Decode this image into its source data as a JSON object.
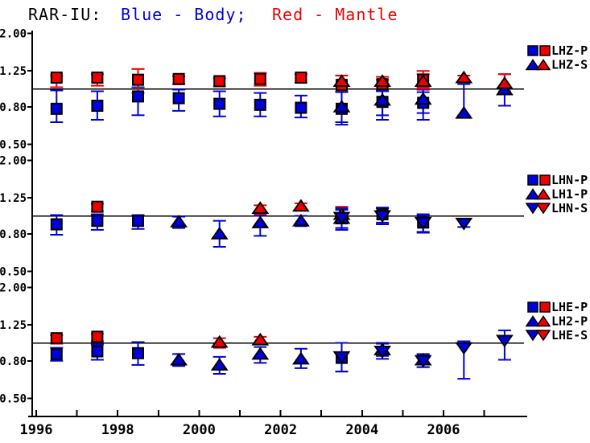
{
  "title": {
    "app": "RAR-IU:",
    "body_label": "Blue - Body;",
    "mantle_label": "Red - Mantle"
  },
  "colors": {
    "body": "#0000dd",
    "mantle": "#ee0000",
    "axis": "#000000",
    "background": "#ffffff"
  },
  "x_axis": {
    "tick_years": [
      1996,
      1997,
      1998,
      1999,
      2000,
      2001,
      2002,
      2003,
      2004,
      2005,
      2006,
      2007
    ],
    "labeled_years": [
      1996,
      1998,
      2000,
      2002,
      2004,
      2006
    ]
  },
  "chart_data": [
    {
      "type": "scatter",
      "channel": "LHZ",
      "yscale": "log",
      "ytick_labels": [
        "2.00",
        "1.25",
        "0.80",
        "0.50"
      ],
      "ytick_values": [
        2.0,
        1.25,
        0.8,
        0.5
      ],
      "ref_line": 1.0,
      "ylim": [
        0.45,
        2.1
      ],
      "legend": [
        {
          "label": "LHZ-P",
          "marker": "square"
        },
        {
          "label": "LHZ-S",
          "marker": "triangle-up"
        }
      ],
      "series": [
        {
          "name": "LHZ-P Body",
          "legend": "LHZ-P",
          "group": "body",
          "marker": "square",
          "points": [
            [
              1996.5,
              0.78,
              0.66,
              0.98
            ],
            [
              1997.5,
              0.81,
              0.68,
              0.97
            ],
            [
              1998.5,
              0.91,
              0.72,
              1.02
            ],
            [
              1999.5,
              0.89,
              0.76,
              0.99
            ],
            [
              2000.5,
              0.83,
              0.71,
              0.97
            ],
            [
              2001.5,
              0.82,
              0.71,
              0.95
            ],
            [
              2002.5,
              0.79,
              0.7,
              0.92
            ],
            [
              2003.5,
              0.78,
              0.64,
              0.97
            ],
            [
              2004.5,
              0.85,
              0.68,
              0.97
            ],
            [
              2005.5,
              0.84,
              0.68,
              0.96
            ]
          ]
        },
        {
          "name": "LHZ-P Mantle",
          "legend": "LHZ-P",
          "group": "mantle",
          "marker": "square",
          "points": [
            [
              1996.5,
              1.15,
              1.02,
              1.18
            ],
            [
              1997.5,
              1.15,
              1.04,
              1.2
            ],
            [
              1998.5,
              1.12,
              0.95,
              1.28
            ],
            [
              1999.5,
              1.13,
              1.06,
              1.17
            ],
            [
              2000.5,
              1.1,
              1.03,
              1.14
            ],
            [
              2001.5,
              1.13,
              1.04,
              1.22
            ],
            [
              2002.5,
              1.15,
              1.08,
              1.2
            ],
            [
              2003.5,
              1.05,
              0.97,
              1.18
            ],
            [
              2004.5,
              1.06,
              1.0,
              1.12
            ],
            [
              2005.5,
              1.12,
              1.02,
              1.25
            ]
          ]
        },
        {
          "name": "LHZ-S Body",
          "legend": "LHZ-S",
          "group": "body",
          "marker": "triangle-up",
          "points": [
            [
              2003.5,
              0.8,
              0.66,
              0.96
            ],
            [
              2004.5,
              0.87,
              0.72,
              0.98
            ],
            [
              2005.5,
              0.88,
              0.74,
              0.99
            ],
            [
              2006.5,
              0.74,
              0.72,
              1.06
            ],
            [
              2007.5,
              0.99,
              0.81,
              1.2
            ]
          ]
        },
        {
          "name": "LHZ-S Mantle",
          "legend": "LHZ-S",
          "group": "mantle",
          "marker": "triangle-up",
          "points": [
            [
              2003.5,
              1.1,
              1.0,
              1.18
            ],
            [
              2004.5,
              1.1,
              1.03,
              1.16
            ],
            [
              2005.5,
              1.1,
              1.0,
              1.2
            ],
            [
              2006.5,
              1.15,
              1.1,
              1.18
            ],
            [
              2007.5,
              1.07,
              0.97,
              1.2
            ]
          ]
        }
      ]
    },
    {
      "type": "scatter",
      "channel": "LHN",
      "yscale": "log",
      "ytick_labels": [
        "2.00",
        "1.25",
        "0.80",
        "0.50"
      ],
      "ytick_values": [
        2.0,
        1.25,
        0.8,
        0.5
      ],
      "ref_line": 1.0,
      "ylim": [
        0.45,
        2.1
      ],
      "legend": [
        {
          "label": "LHN-P",
          "marker": "square"
        },
        {
          "label": "LH1-P",
          "marker": "triangle-up"
        },
        {
          "label": "LHN-S",
          "marker": "triangle-down"
        }
      ],
      "series": [
        {
          "name": "LHN-P Body",
          "legend": "LHN-P",
          "group": "body",
          "marker": "square",
          "points": [
            [
              1996.5,
              0.9,
              0.79,
              1.01
            ],
            [
              1997.5,
              0.94,
              0.84,
              1.02
            ],
            [
              1998.5,
              0.94,
              0.85,
              1.01
            ],
            [
              2003.5,
              0.97,
              0.84,
              1.08
            ],
            [
              2004.5,
              1.02,
              0.92,
              1.1
            ],
            [
              2005.5,
              0.92,
              0.82,
              1.0
            ]
          ]
        },
        {
          "name": "LHN-P Mantle",
          "legend": "LHN-P",
          "group": "mantle",
          "marker": "square",
          "points": [
            [
              1997.5,
              1.12,
              1.06,
              1.16
            ]
          ]
        },
        {
          "name": "LH1-P Body",
          "legend": "LH1-P",
          "group": "body",
          "marker": "triangle-up",
          "points": [
            [
              1999.5,
              0.93,
              0.86,
              0.99
            ],
            [
              2000.5,
              0.8,
              0.68,
              0.94
            ],
            [
              2001.5,
              0.92,
              0.78,
              1.0
            ],
            [
              2002.5,
              0.94,
              0.88,
              1.0
            ],
            [
              2003.5,
              0.97,
              0.86,
              1.08
            ]
          ]
        },
        {
          "name": "LH1-P Mantle",
          "legend": "LH1-P",
          "group": "mantle",
          "marker": "triangle-up",
          "points": [
            [
              2001.5,
              1.1,
              1.02,
              1.14
            ],
            [
              2002.5,
              1.13,
              1.08,
              1.17
            ],
            [
              2003.5,
              1.02,
              0.96,
              1.12
            ]
          ]
        },
        {
          "name": "LHN-S Body",
          "legend": "LHN-S",
          "group": "body",
          "marker": "triangle-down",
          "points": [
            [
              2003.5,
              0.98,
              0.86,
              1.1
            ],
            [
              2004.5,
              1.0,
              0.9,
              1.11
            ],
            [
              2005.5,
              0.92,
              0.81,
              1.02
            ],
            [
              2006.5,
              0.91,
              0.87,
              0.96
            ]
          ]
        }
      ]
    },
    {
      "type": "scatter",
      "channel": "LHE",
      "yscale": "log",
      "ytick_labels": [
        "2.00",
        "1.25",
        "0.80",
        "0.50"
      ],
      "ytick_values": [
        2.0,
        1.25,
        0.8,
        0.5
      ],
      "ref_line": 1.0,
      "ylim": [
        0.45,
        2.1
      ],
      "legend": [
        {
          "label": "LHE-P",
          "marker": "square"
        },
        {
          "label": "LH2-P",
          "marker": "triangle-up"
        },
        {
          "label": "LHE-S",
          "marker": "triangle-down"
        }
      ],
      "series": [
        {
          "name": "LHE-P Body",
          "legend": "LHE-P",
          "group": "body",
          "marker": "square",
          "points": [
            [
              1996.5,
              0.87,
              0.8,
              0.94
            ],
            [
              1997.5,
              0.9,
              0.81,
              0.98
            ],
            [
              1998.5,
              0.88,
              0.76,
              1.01
            ],
            [
              2003.5,
              0.83,
              0.7,
              1.0
            ]
          ]
        },
        {
          "name": "LHE-P Mantle",
          "legend": "LHE-P",
          "group": "mantle",
          "marker": "square",
          "points": [
            [
              1996.5,
              1.06,
              0.99,
              1.1
            ],
            [
              1997.5,
              1.08,
              1.02,
              1.12
            ]
          ]
        },
        {
          "name": "LH2-P Body",
          "legend": "LH2-P",
          "group": "body",
          "marker": "triangle-up",
          "points": [
            [
              1999.5,
              0.81,
              0.75,
              0.87
            ],
            [
              2000.5,
              0.76,
              0.68,
              0.84
            ],
            [
              2001.5,
              0.87,
              0.78,
              0.95
            ],
            [
              2002.5,
              0.82,
              0.73,
              0.93
            ],
            [
              2004.5,
              0.92,
              0.85,
              0.99
            ],
            [
              2005.5,
              0.81,
              0.74,
              0.87
            ]
          ]
        },
        {
          "name": "LH2-P Mantle",
          "legend": "LH2-P",
          "group": "mantle",
          "marker": "triangle-up",
          "points": [
            [
              2000.5,
              1.01,
              0.94,
              1.06
            ],
            [
              2001.5,
              1.04,
              0.99,
              1.08
            ]
          ]
        },
        {
          "name": "LHE-S Body",
          "legend": "LHE-S",
          "group": "body",
          "marker": "triangle-down",
          "points": [
            [
              2003.5,
              0.84,
              0.7,
              1.0
            ],
            [
              2004.5,
              0.9,
              0.82,
              1.0
            ],
            [
              2005.5,
              0.8,
              0.74,
              0.86
            ],
            [
              2006.5,
              0.94,
              0.64,
              1.02
            ],
            [
              2007.5,
              1.03,
              0.81,
              1.17
            ]
          ]
        }
      ]
    }
  ]
}
